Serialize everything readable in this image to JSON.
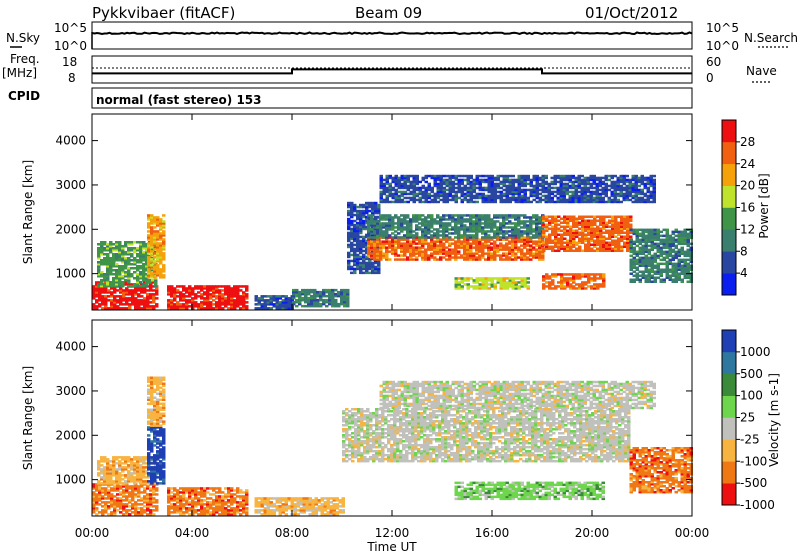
{
  "header": {
    "station": "Pykkvibaer (fitACF)",
    "beam": "Beam 09",
    "date": "01/Oct/2012"
  },
  "nsky_panel": {
    "left_label": "N.Sky",
    "right_label": "N.Search",
    "left_ticks": [
      "10^5",
      "10^0"
    ],
    "right_ticks": [
      "10^5",
      "10^0"
    ]
  },
  "freq_panel": {
    "left_label_1": "Freq.",
    "left_label_2": "[MHz]",
    "right_label": "Nave",
    "left_ticks": [
      "18",
      "8"
    ],
    "right_ticks": [
      "60",
      "0"
    ],
    "freq_steps": [
      {
        "t": 0,
        "f": 11.0
      },
      {
        "t": 8,
        "f": 12.8
      },
      {
        "t": 18,
        "f": 11.0
      },
      {
        "t": 24,
        "f": 11.0
      }
    ]
  },
  "cpid": {
    "label": "CPID",
    "mode": "normal (fast stereo) 153"
  },
  "chart_data": [
    {
      "type": "heatmap",
      "name": "power",
      "ylabel": "Slant Range [km]",
      "y_ticks": [
        "1000",
        "2000",
        "3000",
        "4000"
      ],
      "y_values": [
        1000,
        2000,
        3000,
        4000
      ],
      "ylim": [
        180,
        4600
      ],
      "xlim": [
        0,
        24
      ],
      "colorbar_label": "Power [dB]",
      "colorbar_ticks": [
        "4",
        "8",
        "12",
        "16",
        "20",
        "24",
        "28"
      ],
      "colorbar_colors": [
        "#0a1ef0",
        "#2946a0",
        "#3a7e6e",
        "#3f9448",
        "#bfe32a",
        "#f5a20a",
        "#f06010",
        "#ee1010"
      ],
      "echo_regions": [
        {
          "t0": 0.0,
          "t1": 2.6,
          "r0": 200,
          "r1": 800,
          "c": 7
        },
        {
          "t0": 0.2,
          "t1": 2.6,
          "r0": 700,
          "r1": 1700,
          "c": 3
        },
        {
          "t0": 2.2,
          "t1": 2.9,
          "r0": 900,
          "r1": 2300,
          "c": 5
        },
        {
          "t0": 3.0,
          "t1": 6.2,
          "r0": 200,
          "r1": 700,
          "c": 7
        },
        {
          "t0": 6.5,
          "t1": 8.0,
          "r0": 200,
          "r1": 500,
          "c": 1
        },
        {
          "t0": 8.0,
          "t1": 10.2,
          "r0": 250,
          "r1": 650,
          "c": 2
        },
        {
          "t0": 10.2,
          "t1": 11.5,
          "r0": 1000,
          "r1": 2600,
          "c": 1
        },
        {
          "t0": 11.0,
          "t1": 18.0,
          "r0": 1300,
          "r1": 1800,
          "c": 6
        },
        {
          "t0": 11.0,
          "t1": 18.0,
          "r0": 1800,
          "r1": 2300,
          "c": 2
        },
        {
          "t0": 14.5,
          "t1": 17.5,
          "r0": 650,
          "r1": 900,
          "c": 4
        },
        {
          "t0": 18.0,
          "t1": 20.5,
          "r0": 650,
          "r1": 1000,
          "c": 6
        },
        {
          "t0": 18.0,
          "t1": 21.5,
          "r0": 1500,
          "r1": 2300,
          "c": 6
        },
        {
          "t0": 21.5,
          "t1": 24.0,
          "r0": 800,
          "r1": 2000,
          "c": 2
        },
        {
          "t0": 11.5,
          "t1": 22.5,
          "r0": 2600,
          "r1": 3200,
          "c": 1
        }
      ]
    },
    {
      "type": "heatmap",
      "name": "velocity",
      "ylabel": "Slant Range [km]",
      "y_ticks": [
        "1000",
        "2000",
        "3000",
        "4000"
      ],
      "y_values": [
        1000,
        2000,
        3000,
        4000
      ],
      "ylim": [
        180,
        4600
      ],
      "xlim": [
        0,
        24
      ],
      "x_ticks": [
        "00:00",
        "04:00",
        "08:00",
        "12:00",
        "16:00",
        "20:00",
        "00:00"
      ],
      "x_values": [
        0,
        4,
        8,
        12,
        16,
        20,
        24
      ],
      "xlabel": "Time UT",
      "colorbar_label": "Velocity [m s-1]",
      "colorbar_ticks": [
        "1000",
        "500",
        "100",
        "25",
        "-25",
        "-100",
        "-500",
        "-1000"
      ],
      "colorbar_colors": [
        "#1f3fb5",
        "#2e78a0",
        "#3a8a3a",
        "#6ed64c",
        "#c0c0bc",
        "#f8b440",
        "#f07814",
        "#ee1010"
      ],
      "echo_regions": [
        {
          "t0": 0.0,
          "t1": 2.6,
          "r0": 200,
          "r1": 900,
          "c": 6
        },
        {
          "t0": 0.2,
          "t1": 2.6,
          "r0": 900,
          "r1": 1500,
          "c": 5
        },
        {
          "t0": 2.2,
          "t1": 2.9,
          "r0": 900,
          "r1": 2200,
          "c": 0
        },
        {
          "t0": 3.0,
          "t1": 6.2,
          "r0": 200,
          "r1": 800,
          "c": 6
        },
        {
          "t0": 6.5,
          "t1": 10.0,
          "r0": 200,
          "r1": 600,
          "c": 5
        },
        {
          "t0": 10.0,
          "t1": 21.5,
          "r0": 1400,
          "r1": 2600,
          "c": 4
        },
        {
          "t0": 14.5,
          "t1": 20.5,
          "r0": 550,
          "r1": 950,
          "c": 3
        },
        {
          "t0": 21.5,
          "t1": 24.0,
          "r0": 700,
          "r1": 1700,
          "c": 6
        },
        {
          "t0": 11.5,
          "t1": 22.5,
          "r0": 2600,
          "r1": 3200,
          "c": 4
        },
        {
          "t0": 2.2,
          "t1": 2.9,
          "r0": 2200,
          "r1": 3300,
          "c": 5
        }
      ]
    }
  ]
}
